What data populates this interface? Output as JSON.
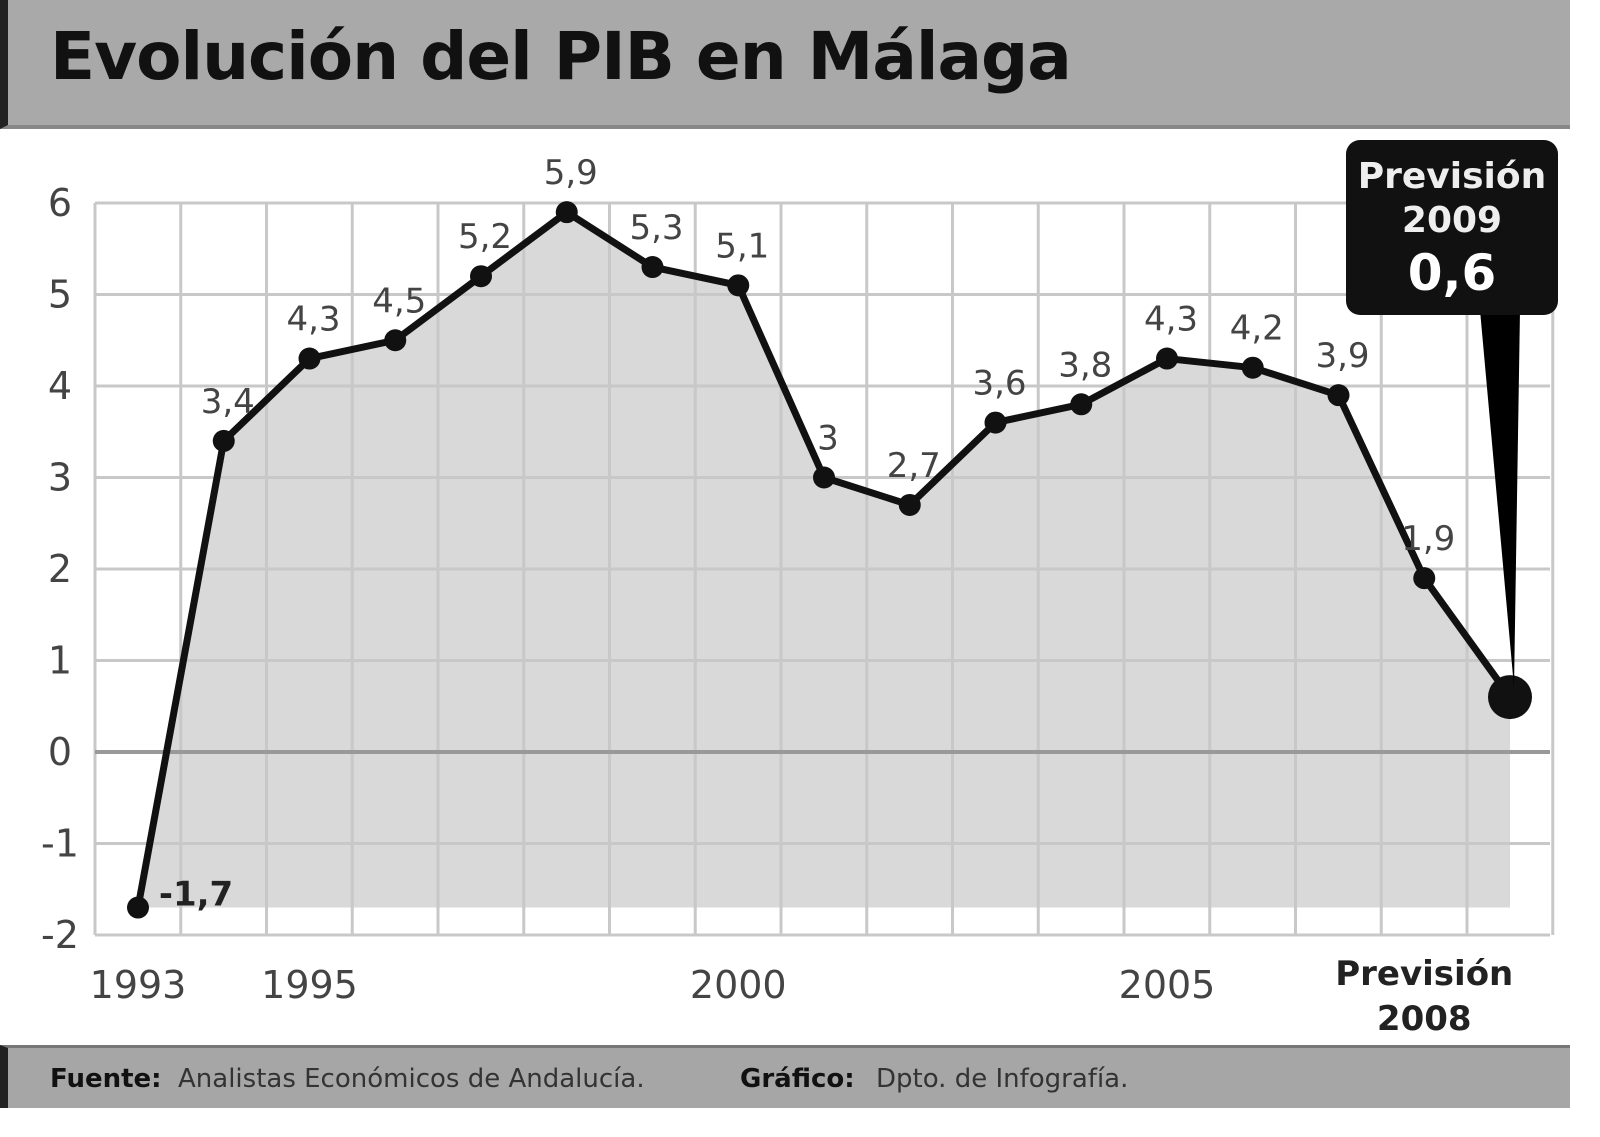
{
  "chart_data": {
    "type": "line",
    "title": "Evolución del PIB en Málaga",
    "xlabel": "",
    "ylabel": "",
    "x": [
      1993,
      1994,
      1995,
      1996,
      1997,
      1998,
      1999,
      2000,
      2001,
      2002,
      2003,
      2004,
      2005,
      2006,
      2007,
      2008,
      2009
    ],
    "values": [
      -1.7,
      3.4,
      4.3,
      4.5,
      5.2,
      5.9,
      5.3,
      5.1,
      3,
      2.7,
      3.6,
      3.8,
      4.3,
      4.2,
      3.9,
      1.9,
      0.6
    ],
    "value_labels": [
      "-1,7",
      "3,4",
      "4,3",
      "4,5",
      "5,2",
      "5,9",
      "5,3",
      "5,1",
      "3",
      "2,7",
      "3,6",
      "3,8",
      "4,3",
      "4,2",
      "3,9",
      "1,9",
      "0,6"
    ],
    "ylim": [
      -2,
      6
    ],
    "yticks": [
      "6",
      "5",
      "4",
      "3",
      "2",
      "1",
      "0",
      "-1",
      "-2"
    ],
    "ytick_values": [
      6,
      5,
      4,
      3,
      2,
      1,
      0,
      -1,
      -2
    ],
    "xtick_labels": [
      {
        "year": 1993,
        "label": "1993"
      },
      {
        "year": 1995,
        "label": "1995"
      },
      {
        "year": 2000,
        "label": "2000"
      },
      {
        "year": 2005,
        "label": "2005"
      },
      {
        "year": 2008,
        "label": "Previsión",
        "label2": "2008"
      }
    ],
    "grid": true,
    "callout": {
      "line1": "Previsión",
      "line2": "2009",
      "value": "0,6"
    },
    "colors": {
      "line": "#111111",
      "fill": "#d9d9d9",
      "grid": "#c8c8c8"
    }
  },
  "footer": {
    "source_label": "Fuente:",
    "source": "Analistas Económicos de Andalucía.",
    "graphic_label": "Gráfico:",
    "graphic": "Dpto. de Infografía."
  }
}
